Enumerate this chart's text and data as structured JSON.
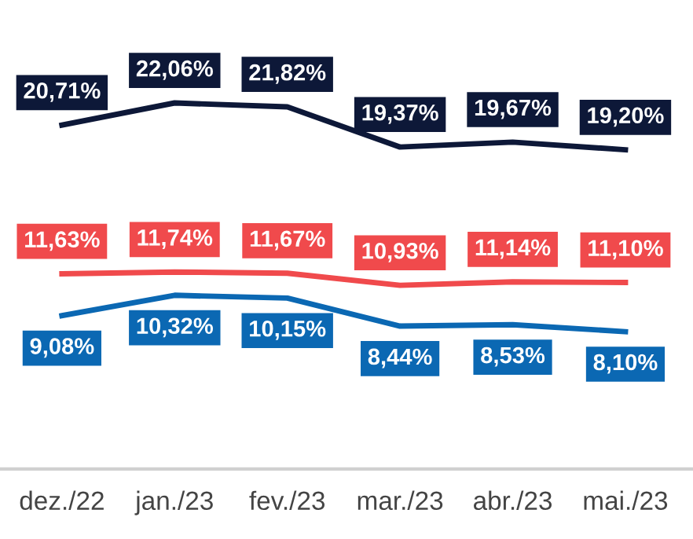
{
  "chart_data": {
    "type": "line",
    "categories": [
      "dez./22",
      "jan./23",
      "fev./23",
      "mar./23",
      "abr./23",
      "mai./23"
    ],
    "series": [
      {
        "color": "#0d1838",
        "values": [
          20.71,
          22.06,
          21.82,
          19.37,
          19.67,
          19.2
        ],
        "value_labels": [
          "20,71%",
          "22,06%",
          "21,82%",
          "19,37%",
          "19,67%",
          "19,20%"
        ]
      },
      {
        "color": "#f04a4c",
        "values": [
          11.63,
          11.74,
          11.67,
          10.93,
          11.14,
          11.1
        ],
        "value_labels": [
          "11,63%",
          "11,74%",
          "11,67%",
          "10,93%",
          "11,14%",
          "11,10%"
        ]
      },
      {
        "color": "#0b68b3",
        "values": [
          9.08,
          10.32,
          10.15,
          8.44,
          8.53,
          8.1
        ],
        "value_labels": [
          "9,08%",
          "10,32%",
          "10,15%",
          "8,44%",
          "8,53%",
          "8,10%"
        ]
      }
    ],
    "grid": false,
    "legend": false,
    "marker": "none",
    "line_style": "solid",
    "tick_labels": "x"
  }
}
